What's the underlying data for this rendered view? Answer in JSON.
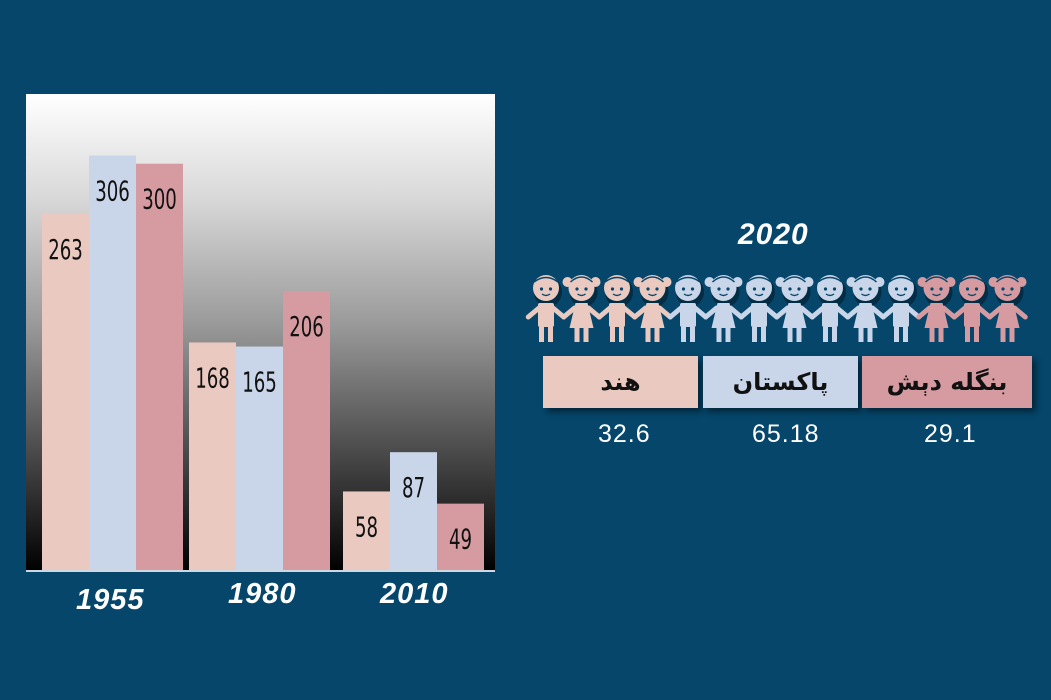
{
  "colors": {
    "background": "#05466a",
    "series_india": "#eacac0",
    "series_pakistan": "#c9d5e9",
    "series_bangladesh": "#d59ba1"
  },
  "chart_data": {
    "type": "bar",
    "categories": [
      "1955",
      "1980",
      "2010"
    ],
    "series": [
      {
        "values": [
          263,
          168,
          58
        ]
      },
      {
        "values": [
          306,
          165,
          87
        ]
      },
      {
        "values": [
          300,
          206,
          49
        ]
      }
    ],
    "ylim": [
      0,
      350
    ],
    "grid": false
  },
  "infographic": {
    "year": "2020",
    "icon": "children-holding-hands-icon",
    "legend": [
      {
        "label": "هند",
        "value": "32.6"
      },
      {
        "label": "پاکستان",
        "value": "65.18"
      },
      {
        "label": "بنگله دېش",
        "value": "29.1"
      }
    ]
  }
}
